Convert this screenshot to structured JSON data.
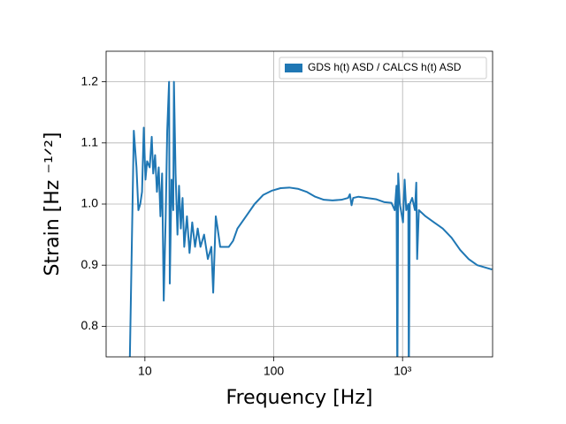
{
  "chart_data": {
    "type": "line",
    "xlabel": "Frequency [Hz]",
    "ylabel": "Strain [Hz ⁻¹ᐟ²]",
    "xscale": "log",
    "xlim": [
      5,
      5000
    ],
    "ylim": [
      0.75,
      1.25
    ],
    "xticks": [
      10,
      100,
      {
        "value": 1000,
        "label": "10³"
      }
    ],
    "yticks": [
      0.8,
      0.9,
      {
        "value": 1,
        "label": "1.0"
      },
      1.1,
      1.2
    ],
    "grid": true,
    "legend": "upper right",
    "x": [
      7.6,
      8.2,
      8.6,
      8.9,
      9.2,
      9.5,
      9.8,
      10.1,
      10.4,
      10.9,
      11.3,
      11.6,
      12.0,
      12.4,
      12.8,
      13.2,
      13.6,
      14.0,
      14.5,
      14.9,
      15.4,
      15.6,
      16.1,
      16.6,
      16.8,
      17.3,
      17.9,
      18.4,
      19.0,
      19.6,
      20.2,
      21.2,
      22.2,
      23.3,
      24.5,
      25.7,
      27.0,
      28.8,
      30.8,
      32.8,
      33.9,
      35.5,
      36.7,
      38.4,
      41.5,
      44.8,
      48.4,
      52.3,
      61,
      71,
      83,
      97,
      113,
      132,
      154,
      180,
      210,
      245,
      286,
      335,
      378,
      390,
      402,
      414,
      455,
      530,
      620,
      725,
      820,
      870,
      898,
      911,
      925,
      953,
      1008,
      1038,
      1068,
      1108,
      1118,
      1138,
      1188,
      1248,
      1278,
      1298,
      1338,
      1508,
      1758,
      2050,
      2400,
      2800,
      3260,
      3800,
      4950
    ],
    "series": [
      {
        "name": "GDS h(t) ASD / CALCS h(t) ASD",
        "color": "#1f77b4",
        "values": [
          0.72,
          1.12,
          1.06,
          0.99,
          1.0,
          1.02,
          1.125,
          1.04,
          1.07,
          1.06,
          1.11,
          1.05,
          1.08,
          1.02,
          1.06,
          0.98,
          1.05,
          0.842,
          0.98,
          1.12,
          1.2,
          0.87,
          1.04,
          0.99,
          1.2,
          1.05,
          0.95,
          1.03,
          0.96,
          1.01,
          0.93,
          0.98,
          0.92,
          0.97,
          0.93,
          0.96,
          0.93,
          0.95,
          0.91,
          0.93,
          0.855,
          0.98,
          0.96,
          0.93,
          0.93,
          0.93,
          0.94,
          0.96,
          0.98,
          1.0,
          1.015,
          1.022,
          1.026,
          1.027,
          1.025,
          1.02,
          1.012,
          1.007,
          1.006,
          1.007,
          1.01,
          1.016,
          0.998,
          1.01,
          1.012,
          1.01,
          1.008,
          1.003,
          1.002,
          0.99,
          1.03,
          0.7,
          1.05,
          1.0,
          0.97,
          1.04,
          0.99,
          1.0,
          0.7,
          1.0,
          1.01,
          0.99,
          1.035,
          0.91,
          0.99,
          0.98,
          0.97,
          0.96,
          0.945,
          0.925,
          0.91,
          0.9,
          0.893
        ]
      }
    ]
  }
}
